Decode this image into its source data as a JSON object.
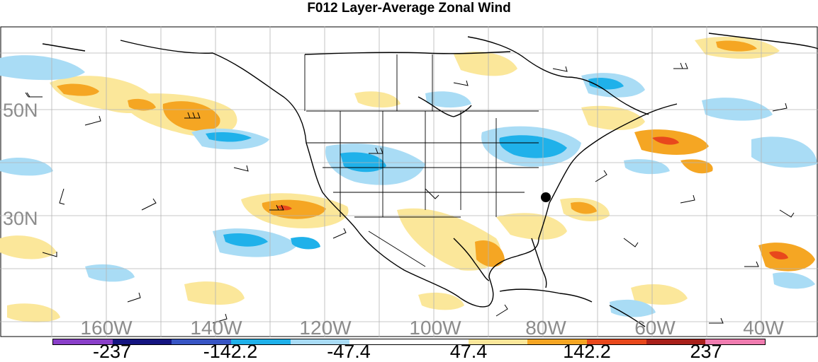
{
  "title": "F012 Layer-Average Zonal Wind",
  "map": {
    "lat_labels": [
      "50N",
      "30N"
    ],
    "lon_labels": [
      "160W",
      "140W",
      "120W",
      "100W",
      "80W",
      "60W",
      "40W"
    ],
    "colors": {
      "ocean": "#ffffff",
      "grid": "#b4b4b4",
      "coast": "#000000",
      "label": "#8c8c8c"
    }
  },
  "colorbar": {
    "colors": [
      "#8a3fc9",
      "#141480",
      "#3755c4",
      "#1fb1ea",
      "#a9dcf5",
      "#ffffff",
      "#ffffff",
      "#fbe79a",
      "#f5a623",
      "#e8481c",
      "#a8201a",
      "#f07cb0"
    ],
    "labels": [
      "-237",
      "-142.2",
      "-47.4",
      "47.4",
      "142.2",
      "237"
    ]
  }
}
